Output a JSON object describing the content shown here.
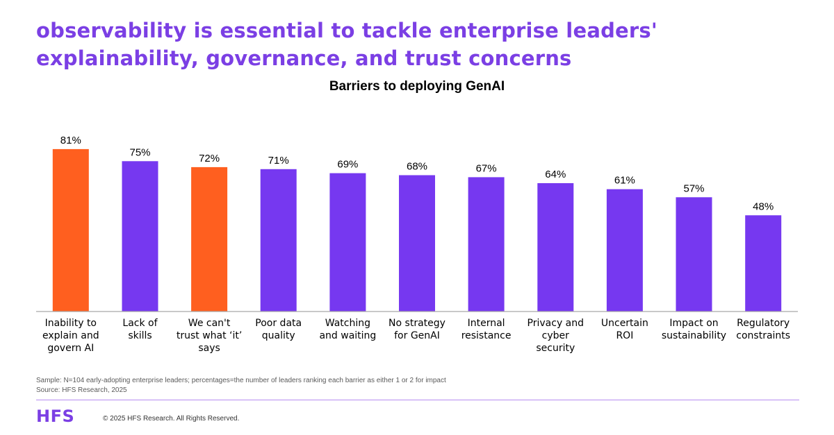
{
  "headline": "observability is essential to tackle enterprise leaders' explainability, governance, and trust concerns",
  "colors": {
    "highlight": "#ff5f1f",
    "primary": "#7638f0",
    "headline": "#7b3fe4",
    "baseline": "#a6a6a6"
  },
  "chart_data": {
    "type": "bar",
    "title": "Barriers to deploying GenAI",
    "xlabel": "",
    "ylabel": "",
    "ylim": [
      0,
      100
    ],
    "grid": false,
    "unit": "%",
    "categories": [
      "Inability to explain and govern AI",
      "Lack of skills",
      "We can't trust what ‘it’ says",
      "Poor data quality",
      "Watching and waiting",
      "No strategy for GenAI",
      "Internal resistance",
      "Privacy and cyber security",
      "Uncertain ROI",
      "Impact on sustainability",
      "Regulatory constraints"
    ],
    "category_lines": [
      [
        "Inability to",
        "explain and",
        "govern AI"
      ],
      [
        "Lack of",
        "skills"
      ],
      [
        "We can't",
        "trust what ‘it’",
        "says"
      ],
      [
        "Poor data",
        "quality"
      ],
      [
        "Watching",
        "and waiting"
      ],
      [
        "No strategy",
        "for GenAI"
      ],
      [
        "Internal",
        "resistance"
      ],
      [
        "Privacy and",
        "cyber",
        "security"
      ],
      [
        "Uncertain",
        "ROI"
      ],
      [
        "Impact on",
        "sustainability"
      ],
      [
        "Regulatory",
        "constraints"
      ]
    ],
    "values": [
      81,
      75,
      72,
      71,
      69,
      68,
      67,
      64,
      61,
      57,
      48
    ],
    "value_labels": [
      "81%",
      "75%",
      "72%",
      "71%",
      "69%",
      "68%",
      "67%",
      "64%",
      "61%",
      "57%",
      "48%"
    ],
    "highlighted": [
      true,
      false,
      true,
      false,
      false,
      false,
      false,
      false,
      false,
      false,
      false
    ]
  },
  "footer": {
    "sample": "Sample: N=104 early-adopting enterprise leaders; percentages=the number of leaders ranking each barrier as either 1 or 2 for impact",
    "source": "Source: HFS Research, 2025",
    "logo": "HFS",
    "copyright": "© 2025 HFS Research. All Rights Reserved."
  }
}
